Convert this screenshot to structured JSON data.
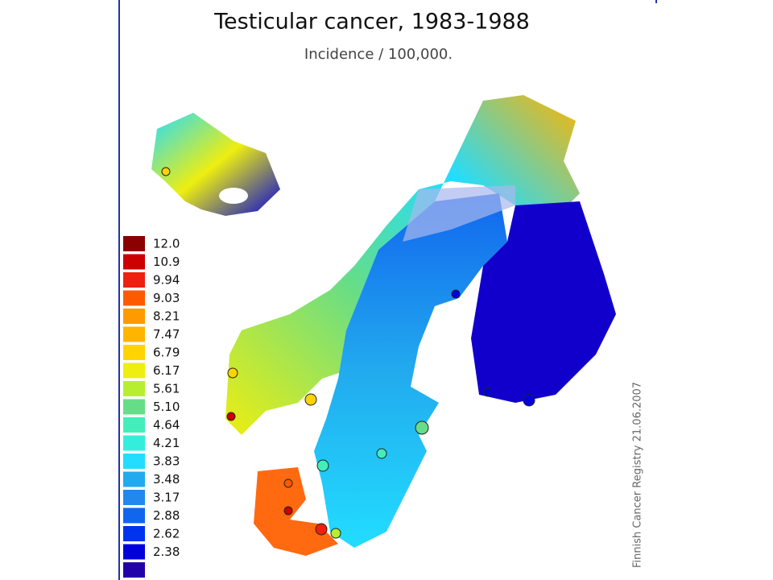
{
  "title": "Testicular cancer, 1983-1988",
  "subtitle": "Incidence / 100,000.",
  "credit": "Finnish Cancer Registry 21.06.2007",
  "legend": [
    {
      "label": "12.0",
      "color": "#8b0000"
    },
    {
      "label": "10.9",
      "color": "#cc0000"
    },
    {
      "label": "9.94",
      "color": "#ee2010"
    },
    {
      "label": "9.03",
      "color": "#ff5a00"
    },
    {
      "label": "8.21",
      "color": "#ff9a00"
    },
    {
      "label": "7.47",
      "color": "#ffb400"
    },
    {
      "label": "6.79",
      "color": "#ffd400"
    },
    {
      "label": "6.17",
      "color": "#eeee10"
    },
    {
      "label": "5.61",
      "color": "#b8ee30"
    },
    {
      "label": "5.10",
      "color": "#66dd88"
    },
    {
      "label": "4.64",
      "color": "#44eebb"
    },
    {
      "label": "4.21",
      "color": "#33eedd"
    },
    {
      "label": "3.83",
      "color": "#22ddff"
    },
    {
      "label": "3.48",
      "color": "#22aaee"
    },
    {
      "label": "3.17",
      "color": "#2288ee"
    },
    {
      "label": "2.88",
      "color": "#1166ee"
    },
    {
      "label": "2.62",
      "color": "#0033ee"
    },
    {
      "label": "2.38",
      "color": "#0000dd"
    },
    {
      "label": null,
      "color": "#2200aa"
    }
  ]
}
